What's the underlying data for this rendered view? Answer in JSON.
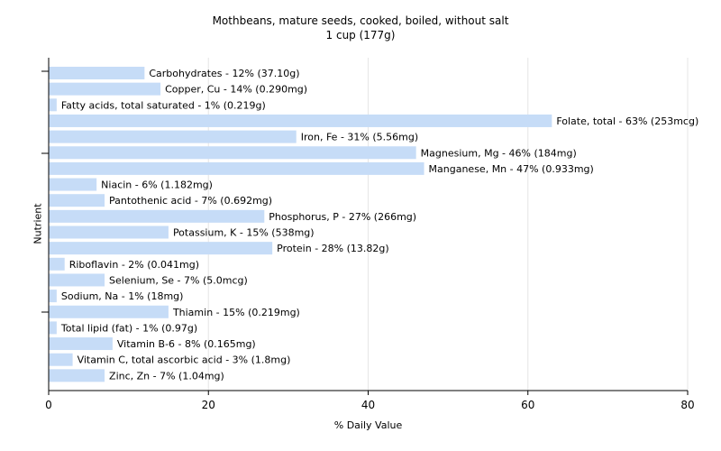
{
  "chart_data": {
    "type": "bar",
    "orientation": "horizontal",
    "title": "Mothbeans, mature seeds, cooked, boiled, without salt",
    "subtitle": "1 cup (177g)",
    "xlabel": "% Daily Value",
    "ylabel": "Nutrient",
    "xlim": [
      0,
      80
    ],
    "xticks": [
      0,
      20,
      40,
      60,
      80
    ],
    "grid": true,
    "bar_color": "#c6dcf7",
    "categories": [
      "Carbohydrates",
      "Copper, Cu",
      "Fatty acids, total saturated",
      "Folate, total",
      "Iron, Fe",
      "Magnesium, Mg",
      "Manganese, Mn",
      "Niacin",
      "Pantothenic acid",
      "Phosphorus, P",
      "Potassium, K",
      "Protein",
      "Riboflavin",
      "Selenium, Se",
      "Sodium, Na",
      "Thiamin",
      "Total lipid (fat)",
      "Vitamin B-6",
      "Vitamin C, total ascorbic acid",
      "Zinc, Zn"
    ],
    "values": [
      12,
      14,
      1,
      63,
      31,
      46,
      47,
      6,
      7,
      27,
      15,
      28,
      2,
      7,
      1,
      15,
      1,
      8,
      3,
      7
    ],
    "labels": [
      "Carbohydrates - 12% (37.10g)",
      "Copper, Cu - 14% (0.290mg)",
      "Fatty acids, total saturated - 1% (0.219g)",
      "Folate, total - 63% (253mcg)",
      "Iron, Fe - 31% (5.56mg)",
      "Magnesium, Mg - 46% (184mg)",
      "Manganese, Mn - 47% (0.933mg)",
      "Niacin - 6% (1.182mg)",
      "Pantothenic acid - 7% (0.692mg)",
      "Phosphorus, P - 27% (266mg)",
      "Potassium, K - 15% (538mg)",
      "Protein - 28% (13.82g)",
      "Riboflavin - 2% (0.041mg)",
      "Selenium, Se - 7% (5.0mcg)",
      "Sodium, Na - 1% (18mg)",
      "Thiamin - 15% (0.219mg)",
      "Total lipid (fat) - 1% (0.97g)",
      "Vitamin B-6 - 8% (0.165mg)",
      "Vitamin C, total ascorbic acid - 3% (1.8mg)",
      "Zinc, Zn - 7% (1.04mg)"
    ]
  }
}
